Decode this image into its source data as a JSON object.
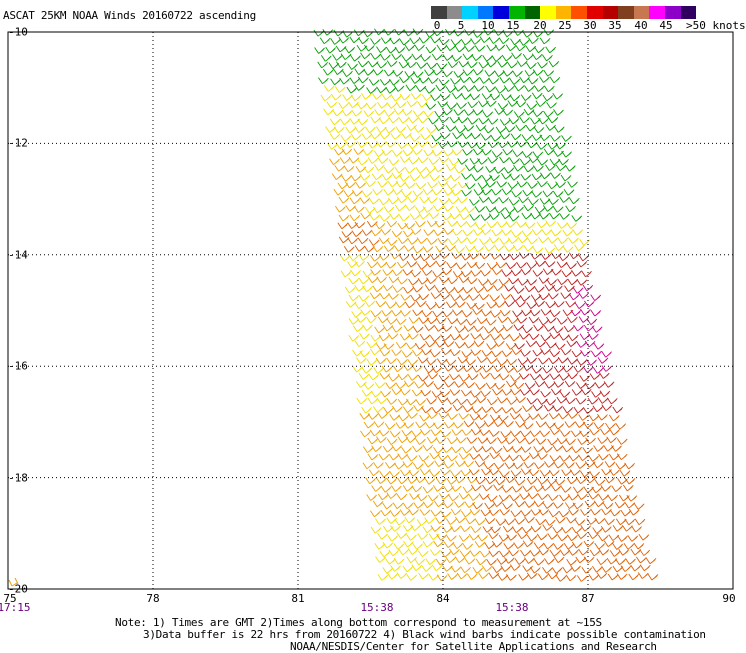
{
  "title": "ASCAT 25KM NOAA Winds 20160722 ascending",
  "legend": {
    "colors": [
      "#404040",
      "#8c8c8c",
      "#00d2ff",
      "#0078ff",
      "#0000dc",
      "#00b400",
      "#006400",
      "#ffff00",
      "#ffb400",
      "#ff5000",
      "#e00000",
      "#b40000",
      "#804020",
      "#c87850",
      "#ff00ff",
      "#8c00c8",
      "#300060"
    ],
    "labels": [
      "0",
      "5",
      "10",
      "15",
      "20",
      "25",
      "30",
      "35",
      "40",
      "45",
      ">50 knots"
    ]
  },
  "axes": {
    "x_ticks": [
      "75",
      "78",
      "81",
      "84",
      "87",
      "90"
    ],
    "y_ticks": [
      "-10",
      "-12",
      "-14",
      "-16",
      "-18",
      "-20"
    ],
    "time_labels": [
      "17:15",
      "15:38",
      "15:38"
    ]
  },
  "notes": {
    "line1": "Note: 1) Times are GMT 2)Times along bottom correspond to measurement at ~15S",
    "line2": "3)Data buffer is 22 hrs from 20160722 4) Black wind barbs indicate possible contamination",
    "line3": "NOAA/NESDIS/Center for Satellite Applications and Research"
  },
  "map": {
    "lon_range": [
      75,
      90
    ],
    "lat_range": [
      -20,
      -10
    ],
    "swath_colors": {
      "green": "#00a000",
      "yellow": "#f0e000",
      "orange": "#f0a000",
      "dark_orange": "#e06000",
      "red": "#c02020",
      "magenta": "#d0008a"
    }
  }
}
